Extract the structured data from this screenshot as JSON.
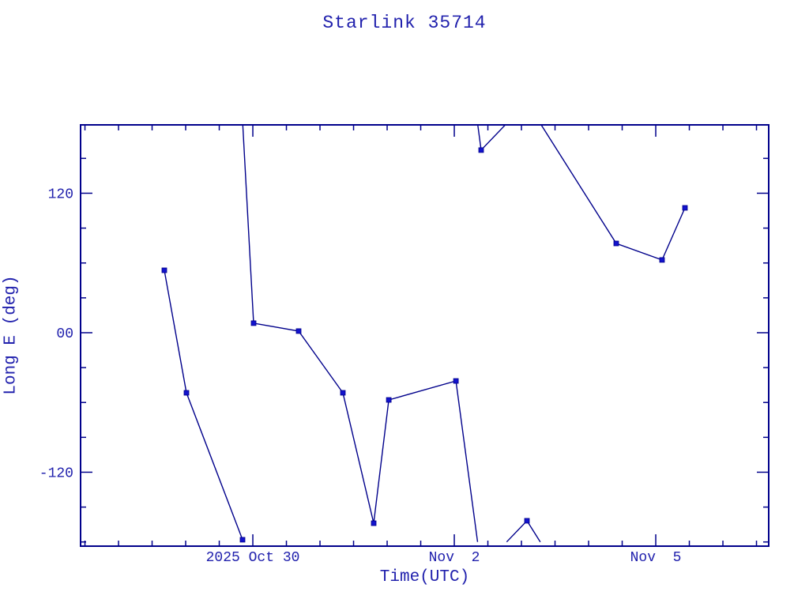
{
  "window": {
    "background": "#ffffff",
    "text_color": "#2121ad",
    "line_color": "#00008b",
    "marker_color": "#1313cd"
  },
  "chart_data": {
    "type": "line",
    "title": "Starlink 35714",
    "xlabel": "Time(UTC)",
    "ylabel": "Long E (deg)",
    "x_unit": "days relative to tick '2025 Oct 30'",
    "xlim": [
      -2.565,
      7.682
    ],
    "ylim": [
      -183.6,
      178.8
    ],
    "longitude_wrap_deg": 180,
    "grid": false,
    "legend": false,
    "x_major_ticks": [
      {
        "t": 0,
        "label": "2025 Oct 30"
      },
      {
        "t": 3,
        "label": "Nov  2"
      },
      {
        "t": 6,
        "label": "Nov  5"
      }
    ],
    "x_minor_step_days": 0.5,
    "y_major_ticks": [
      {
        "v": 120,
        "label": "120"
      },
      {
        "v": 0,
        "label": "00"
      },
      {
        "v": -120,
        "label": "-120"
      }
    ],
    "y_minor_step_deg": 30,
    "series": [
      {
        "name": "Starlink 35714",
        "marker": "square",
        "points": [
          {
            "t": -1.318,
            "lon": 53.7
          },
          {
            "t": -0.988,
            "lon": -51.7
          },
          {
            "t": -0.153,
            "lon": -178.1
          },
          {
            "t": 0.012,
            "lon": 8.2
          },
          {
            "t": 0.682,
            "lon": 1.4
          },
          {
            "t": 1.341,
            "lon": -51.7
          },
          {
            "t": 1.8,
            "lon": -163.9
          },
          {
            "t": 2.024,
            "lon": -57.8
          },
          {
            "t": 3.024,
            "lon": -41.5
          },
          {
            "t": 3.4,
            "lon": 157.1
          },
          {
            "t": 4.082,
            "lon": -161.8
          },
          {
            "t": 5.412,
            "lon": 76.8
          },
          {
            "t": 6.094,
            "lon": 62.6
          },
          {
            "t": 6.435,
            "lon": 107.4
          }
        ]
      }
    ]
  }
}
